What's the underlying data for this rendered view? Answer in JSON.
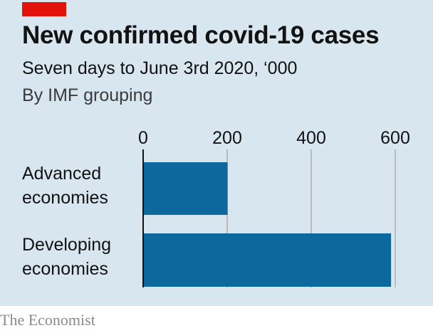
{
  "chart_data": {
    "type": "bar",
    "orientation": "horizontal",
    "title": "New confirmed covid-19 cases",
    "subtitle": "Seven days to June 3rd 2020, ‘000",
    "grouping_note": "By IMF grouping",
    "categories": [
      "Advanced economies",
      "Developing economies"
    ],
    "category_lines": [
      [
        "Advanced",
        "economies"
      ],
      [
        "Developing",
        "economies"
      ]
    ],
    "values": [
      201,
      590
    ],
    "xlim": [
      0,
      600
    ],
    "xticks": [
      0,
      200,
      400,
      600
    ],
    "xtick_labels": [
      "0",
      "200",
      "400",
      "600"
    ],
    "grid": true,
    "source": "The Economist"
  },
  "colors": {
    "bar": "#0d689e",
    "background": "#d8e6ef",
    "grid": "#bcbcbc",
    "brand": "#e3120b",
    "axis": "#121212"
  }
}
